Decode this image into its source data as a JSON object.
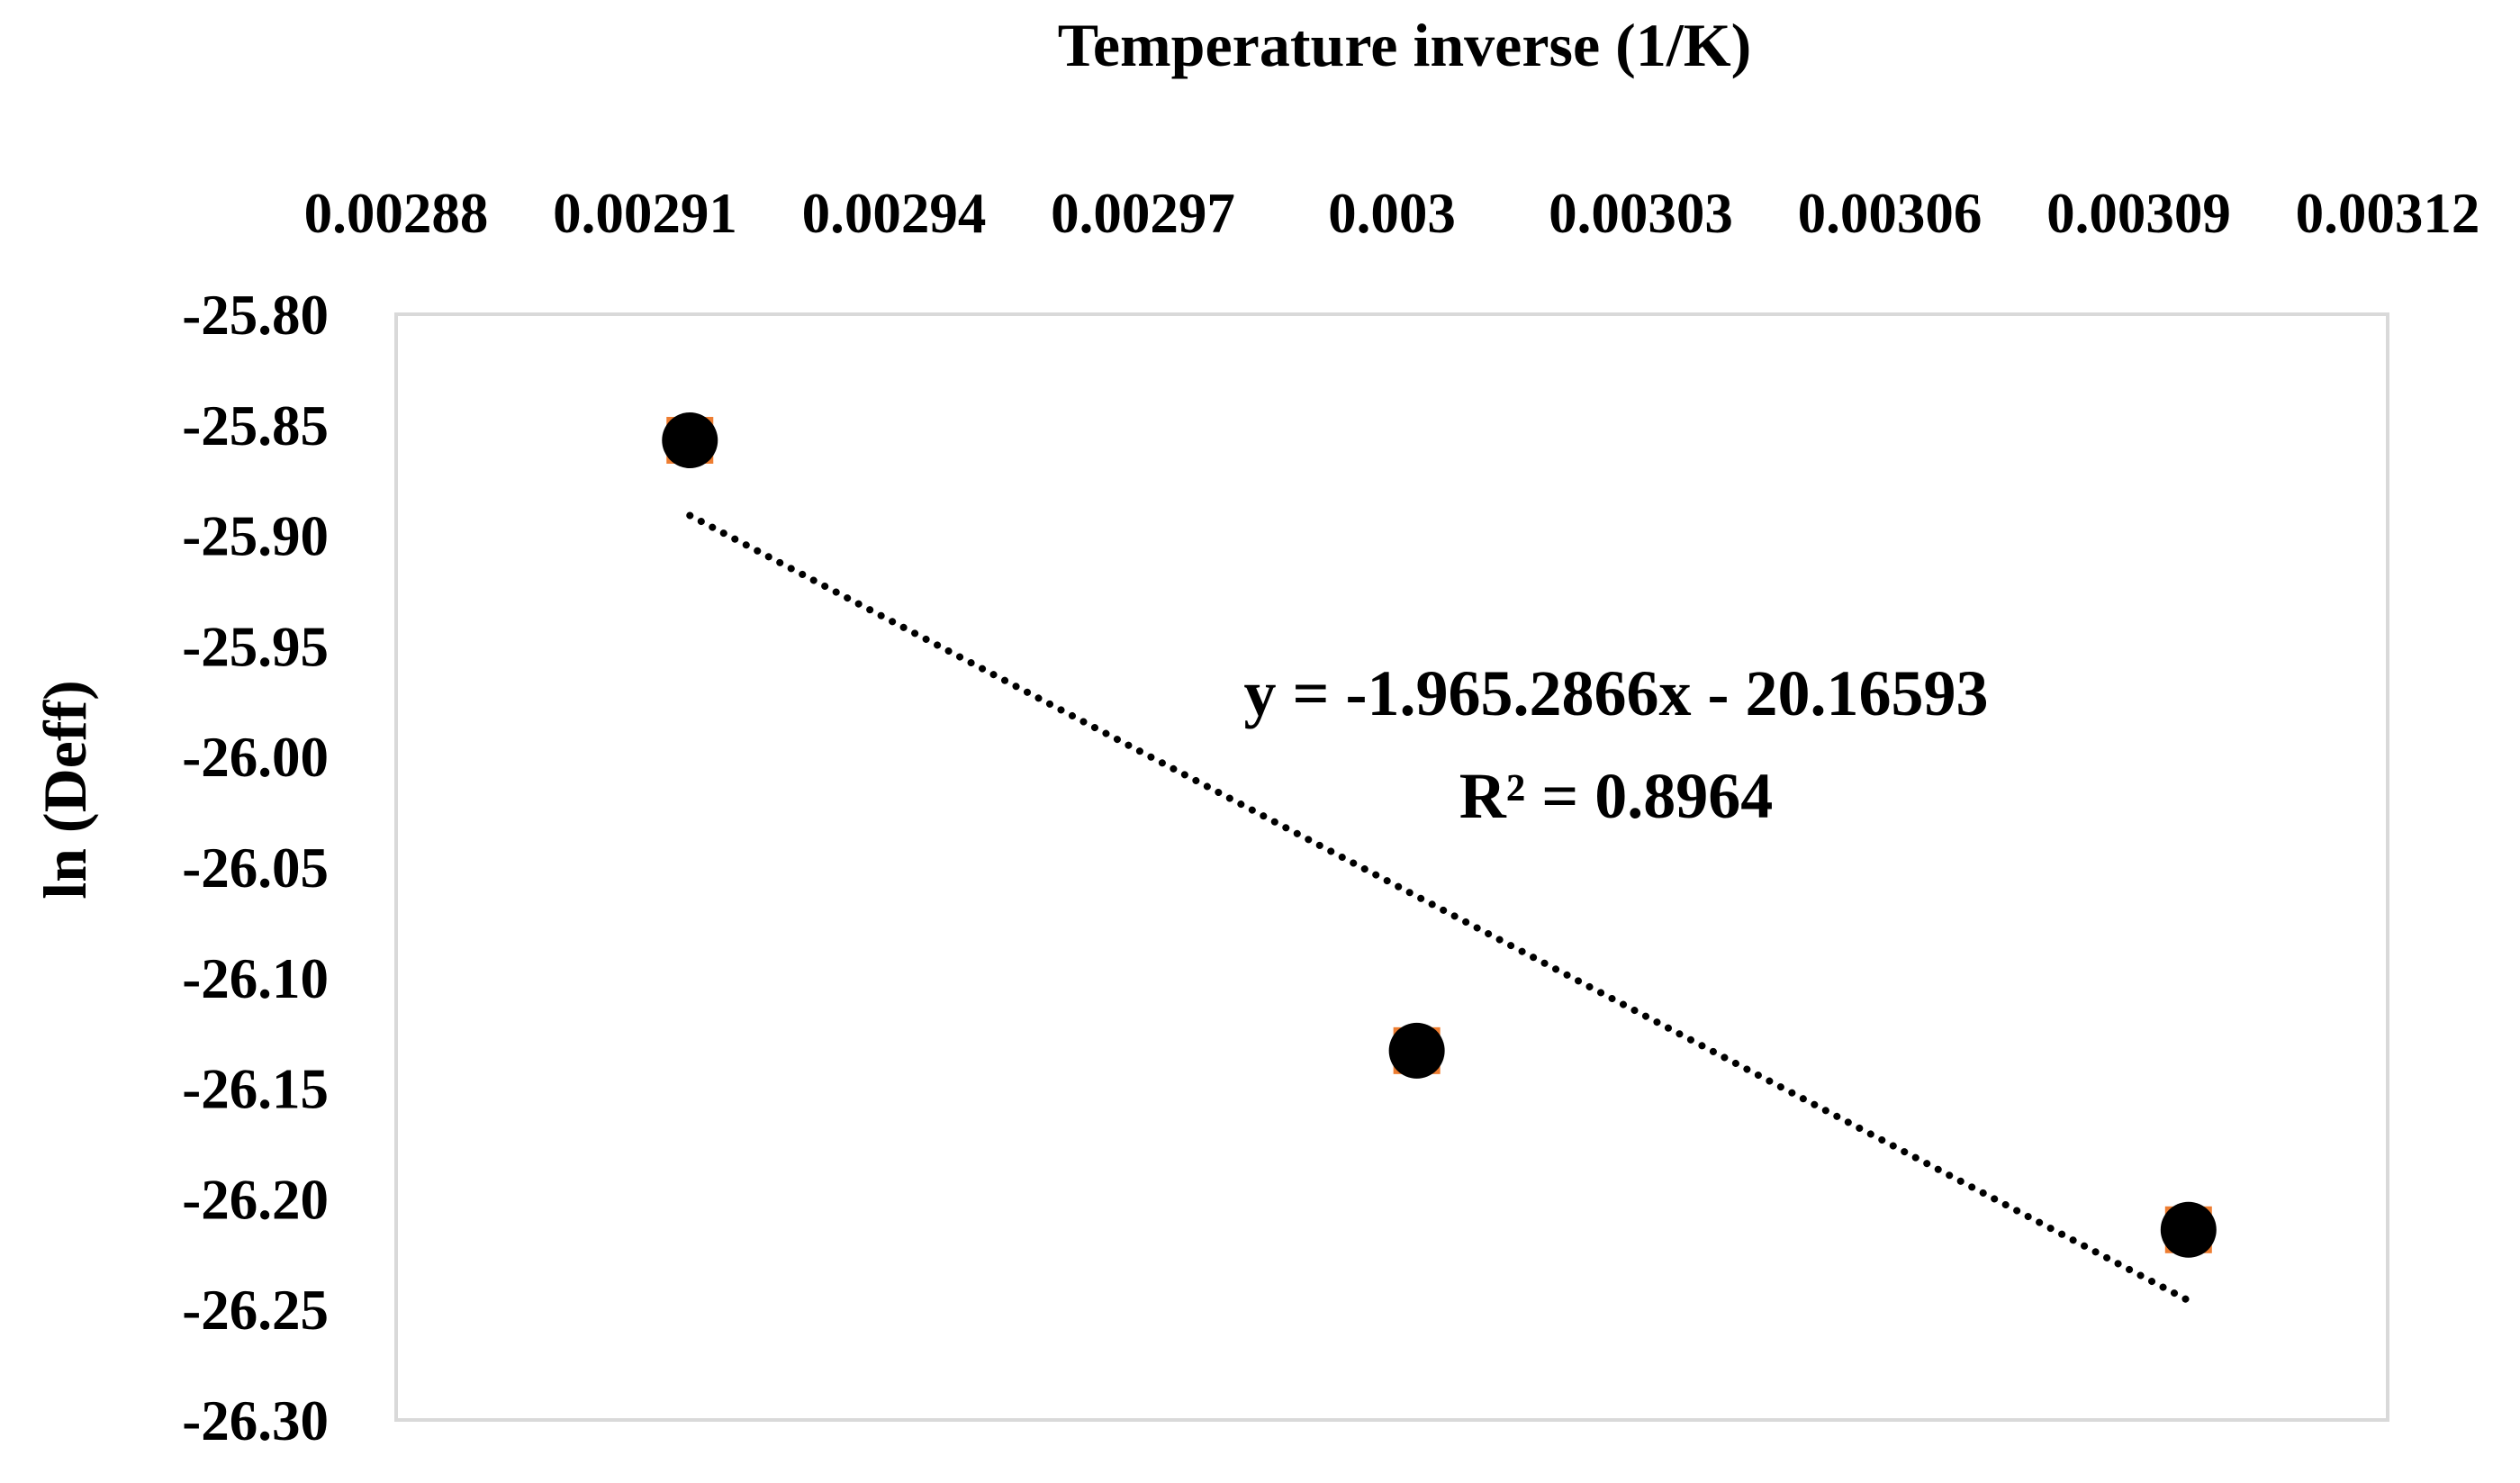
{
  "chart_data": {
    "type": "scatter",
    "xlabel": "Temperature inverse (1/K)",
    "ylabel": "ln (Deff)",
    "x_axis_position": "top",
    "xlim": [
      0.00288,
      0.00312
    ],
    "ylim": [
      -26.3,
      -25.8
    ],
    "x_ticks": [
      "0.00288",
      "0.00291",
      "0.00294",
      "0.00297",
      "0.003",
      "0.00303",
      "0.00306",
      "0.00309",
      "0.00312"
    ],
    "y_ticks": [
      "-25.80",
      "-25.85",
      "-25.90",
      "-25.95",
      "-26.00",
      "-26.05",
      "-26.10",
      "-26.15",
      "-26.20",
      "-26.25",
      "-26.30"
    ],
    "grid": false,
    "legend": "none",
    "series": [
      {
        "x": [
          0.0029154,
          0.003003,
          0.003096
        ],
        "y": [
          -25.857,
          -26.133,
          -26.214
        ],
        "marker_color": "#000000",
        "marker_edge_color": "#ED7D31"
      }
    ],
    "trendline": {
      "type": "linear",
      "style": "dotted",
      "color": "#000000",
      "x_range": [
        0.0029154,
        0.003096
      ],
      "y_range": [
        -25.891,
        -26.246
      ],
      "equation_label": "y = -1.965.2866x - 20.16593",
      "r2_label": "R² = 0.8964"
    },
    "plot_border_color": "#D9D9D9"
  }
}
